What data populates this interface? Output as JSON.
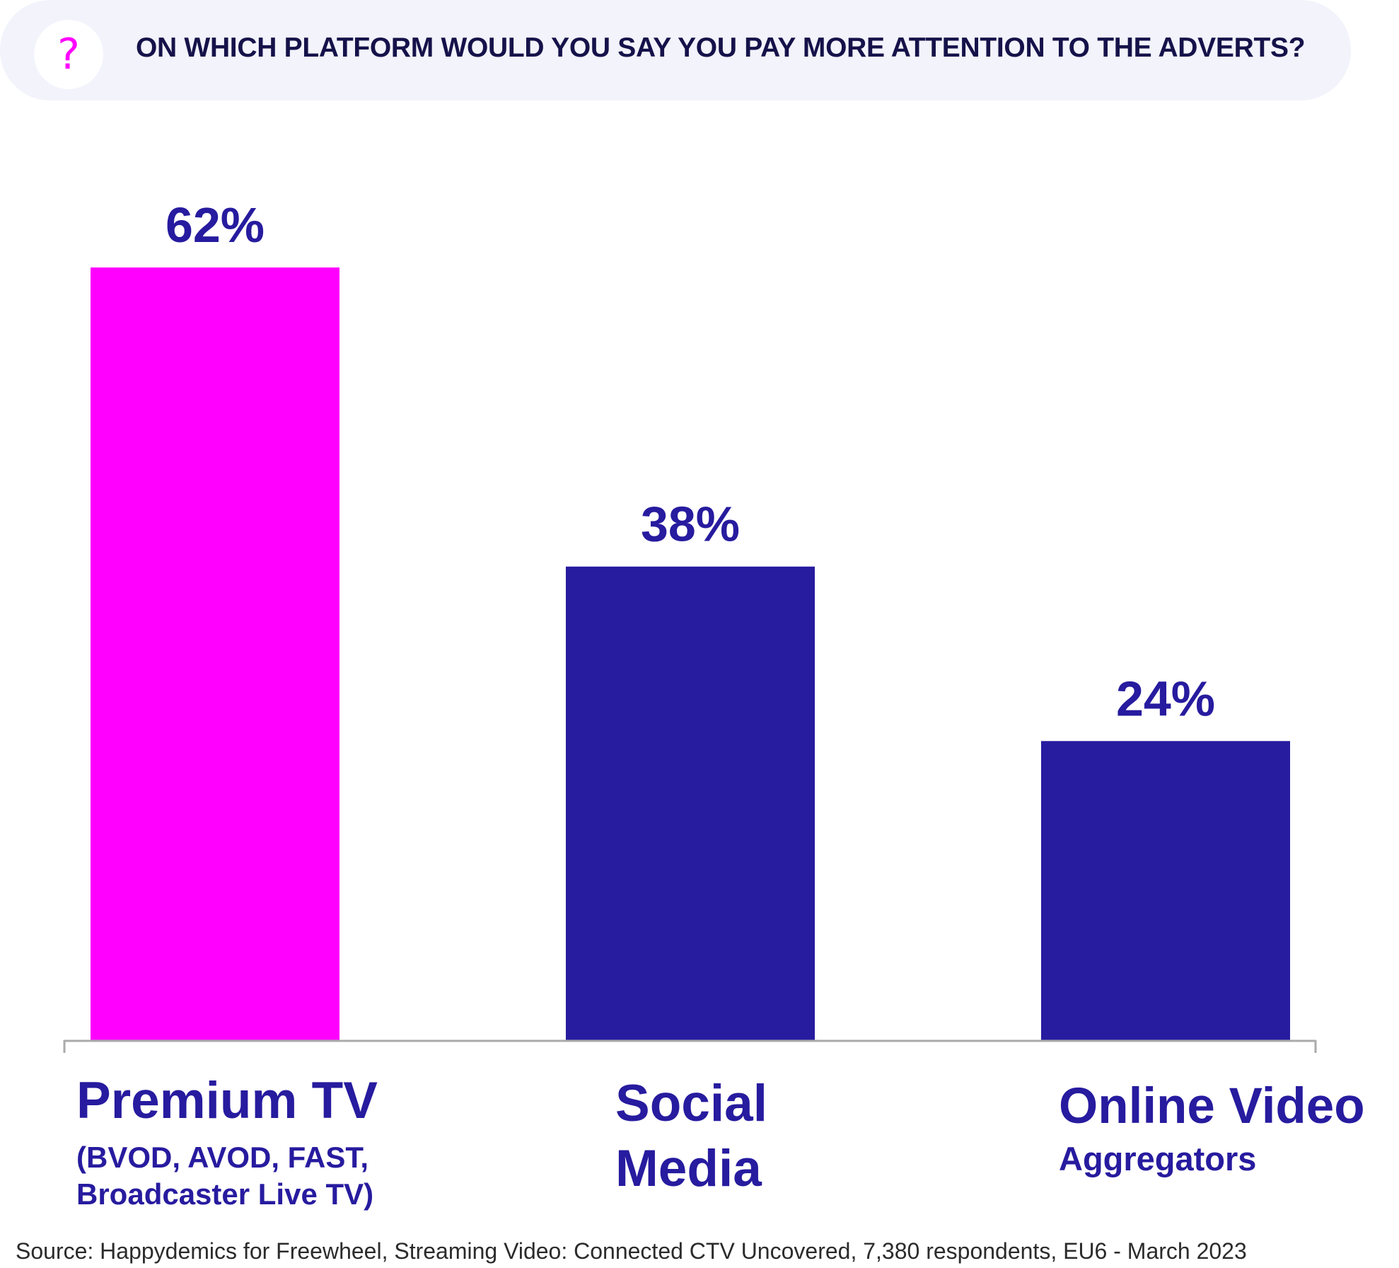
{
  "question": {
    "icon": "question-mark-icon",
    "text": "ON WHICH PLATFORM WOULD YOU SAY YOU PAY MORE ATTENTION TO THE ADVERTS?"
  },
  "chart_data": {
    "type": "bar",
    "title": "ON WHICH PLATFORM WOULD YOU SAY YOU PAY MORE ATTENTION TO THE ADVERTS?",
    "categories": [
      "Premium TV (BVOD, AVOD, FAST, Broadcaster Live TV)",
      "Social Media",
      "Online Video Aggregators"
    ],
    "values": [
      62,
      38,
      24
    ],
    "value_labels": [
      "62%",
      "38%",
      "24%"
    ],
    "unit": "%",
    "ylim": [
      0,
      62
    ],
    "grid": false,
    "colors": [
      "#ff00ff",
      "#271b9f",
      "#271b9f"
    ],
    "xlabel": "",
    "ylabel": ""
  },
  "category_labels": [
    {
      "main": "Premium TV",
      "sub": [
        "(BVOD, AVOD, FAST,",
        "Broadcaster Live TV)"
      ]
    },
    {
      "main": [
        "Social",
        "Media"
      ]
    },
    {
      "main": "Online Video",
      "sub": "Aggregators"
    }
  ],
  "source": "Source: Happydemics for Freewheel, Streaming Video: Connected CTV Uncovered, 7,380 respondents, EU6 - March 2023",
  "colors": {
    "highlight": "#ff00ff",
    "primary": "#271b9f",
    "text_dark": "#15124a",
    "banner_bg": "#f2f3fb",
    "axis": "#aaaaaa"
  }
}
